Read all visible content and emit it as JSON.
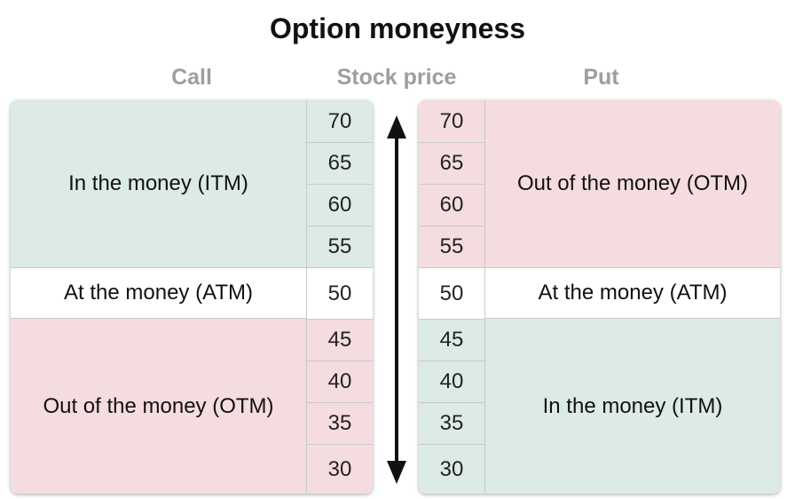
{
  "title": "Option moneyness",
  "headers": {
    "call": "Call",
    "stock_price": "Stock price",
    "put": "Put"
  },
  "prices": [
    "70",
    "65",
    "60",
    "55",
    "50",
    "45",
    "40",
    "35",
    "30"
  ],
  "call": {
    "upper": "In the money (ITM)",
    "middle": "At the money (ATM)",
    "lower": "Out of the money (OTM)"
  },
  "put": {
    "upper": "Out of the money (OTM)",
    "middle": "At the money (ATM)",
    "lower": "In the money (ITM)"
  },
  "colors": {
    "itm": "#dcebe4",
    "otm": "#f5dcdf",
    "atm": "#ffffff",
    "grid": "#c9c9c9",
    "arrow": "#111111"
  }
}
